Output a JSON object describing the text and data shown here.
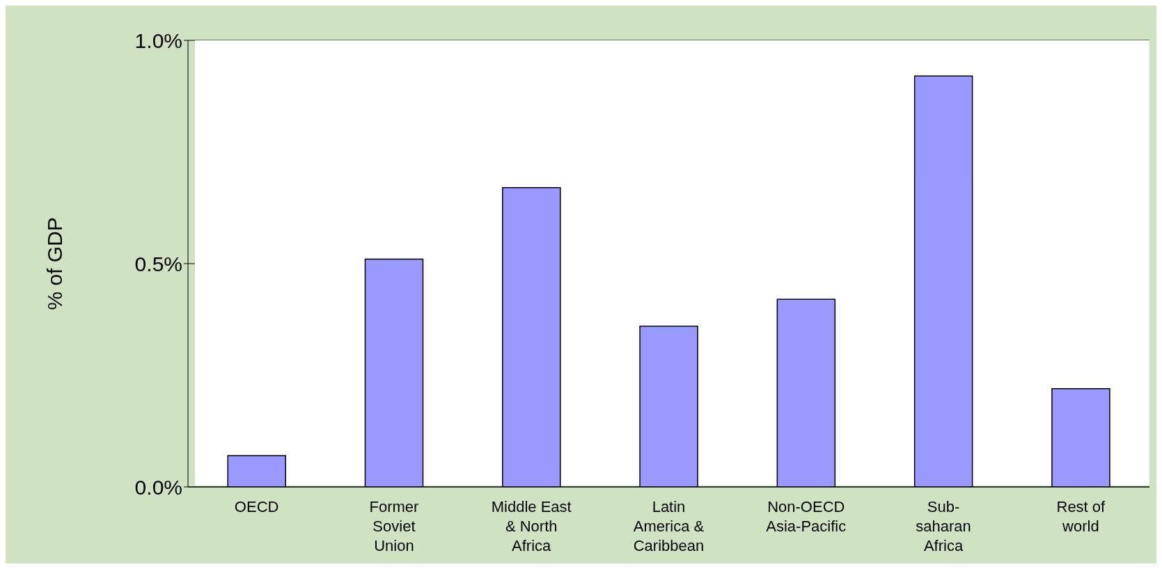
{
  "chart_data": {
    "type": "bar",
    "ylabel": "% of GDP",
    "categories": [
      "OECD",
      "Former\nSoviet\nUnion",
      "Middle East\n& North\nAfrica",
      "Latin\nAmerica &\nCaribbean",
      "Non-OECD\nAsia-Pacific",
      "Sub-\nsaharan\nAfrica",
      "Rest of\nworld"
    ],
    "values": [
      0.07,
      0.51,
      0.67,
      0.36,
      0.42,
      0.92,
      0.22
    ],
    "color": "#9999ff",
    "ylim": [
      0,
      1
    ],
    "yticks": [
      {
        "value": 0,
        "label": "0.0%"
      },
      {
        "value": 0.5,
        "label": "0.5%"
      },
      {
        "value": 1,
        "label": "1.0%"
      }
    ],
    "grid": "y"
  }
}
